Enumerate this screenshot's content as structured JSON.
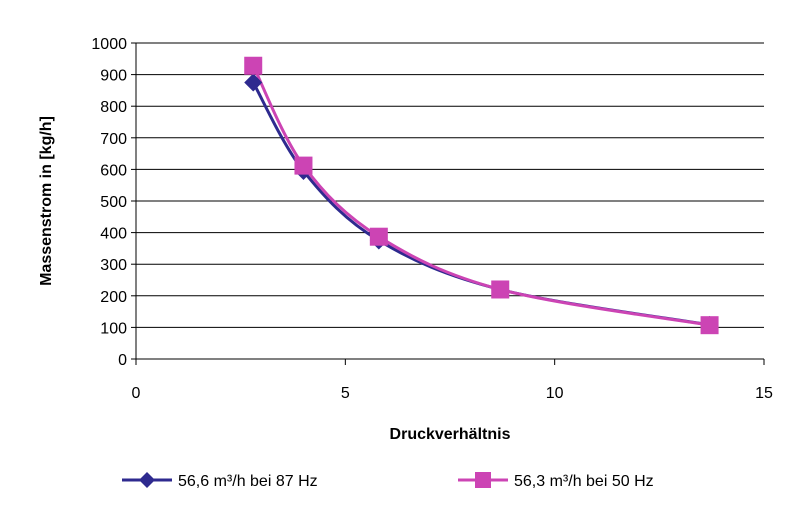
{
  "chart_data": {
    "type": "line",
    "title": "",
    "xlabel": "Druckverhältnis",
    "ylabel": "Massenstrom in [kg/h]",
    "xlim": [
      0,
      15
    ],
    "ylim": [
      0,
      1000
    ],
    "x_ticks": [
      0,
      5,
      10,
      15
    ],
    "y_ticks": [
      0,
      100,
      200,
      300,
      400,
      500,
      600,
      700,
      800,
      900,
      1000
    ],
    "grid": {
      "horizontal": true,
      "vertical": false
    },
    "legend_position": "bottom",
    "series": [
      {
        "name": "56,6 m³/h bei  87 Hz",
        "marker": "diamond",
        "color": "#2E2A8F",
        "x": [
          2.8,
          4.0,
          5.8,
          8.7,
          13.7
        ],
        "y": [
          875,
          595,
          375,
          220,
          108
        ]
      },
      {
        "name": "56,3 m³/h bei  50 Hz",
        "marker": "square",
        "color": "#CC44B4",
        "x": [
          2.8,
          4.0,
          5.8,
          8.7,
          13.7
        ],
        "y": [
          928,
          612,
          387,
          220,
          107
        ]
      }
    ]
  }
}
